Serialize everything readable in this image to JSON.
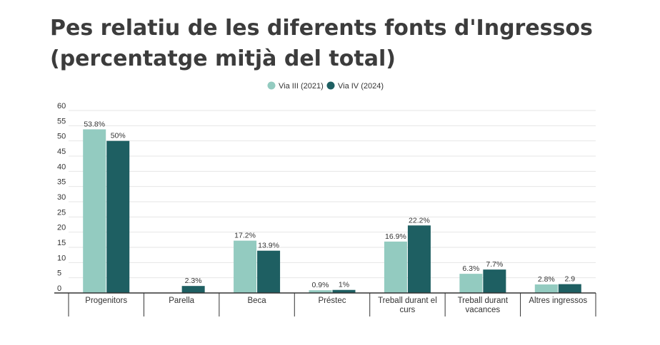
{
  "title": {
    "line1": "Pes relatiu de les diferents fonts d'Ingressos",
    "line2": "(percentatge mitjà del total)"
  },
  "colors": {
    "series0": "#93cbc0",
    "series1": "#1e5f62"
  },
  "chart_data": {
    "type": "bar",
    "title": "Pes relatiu de les diferents fonts d'Ingressos (percentatge mitjà del total)",
    "legend_position": "top-center",
    "grid": true,
    "ylim": [
      0,
      60
    ],
    "yticks": [
      0,
      5,
      10,
      15,
      20,
      25,
      30,
      35,
      40,
      45,
      50,
      55,
      60
    ],
    "categories": [
      [
        "Progenitors"
      ],
      [
        "Parella"
      ],
      [
        "Beca"
      ],
      [
        "Préstec"
      ],
      [
        "Treball durant el",
        "curs"
      ],
      [
        "Treball durant",
        "vacances"
      ],
      [
        "Altres ingressos"
      ]
    ],
    "series": [
      {
        "name": "Via III (2021)",
        "values": [
          53.8,
          null,
          17.2,
          0.9,
          16.9,
          6.3,
          2.8
        ],
        "labels": [
          "53.8%",
          "",
          "17.2%",
          "0.9%",
          "16.9%",
          "6.3%",
          "2.8%"
        ]
      },
      {
        "name": "Via IV (2024)",
        "values": [
          50,
          2.3,
          13.9,
          1,
          22.2,
          7.7,
          2.9
        ],
        "labels": [
          "50%",
          "2.3%",
          "13.9%",
          "1%",
          "22.2%",
          "7.7%",
          "2.9"
        ]
      }
    ]
  }
}
